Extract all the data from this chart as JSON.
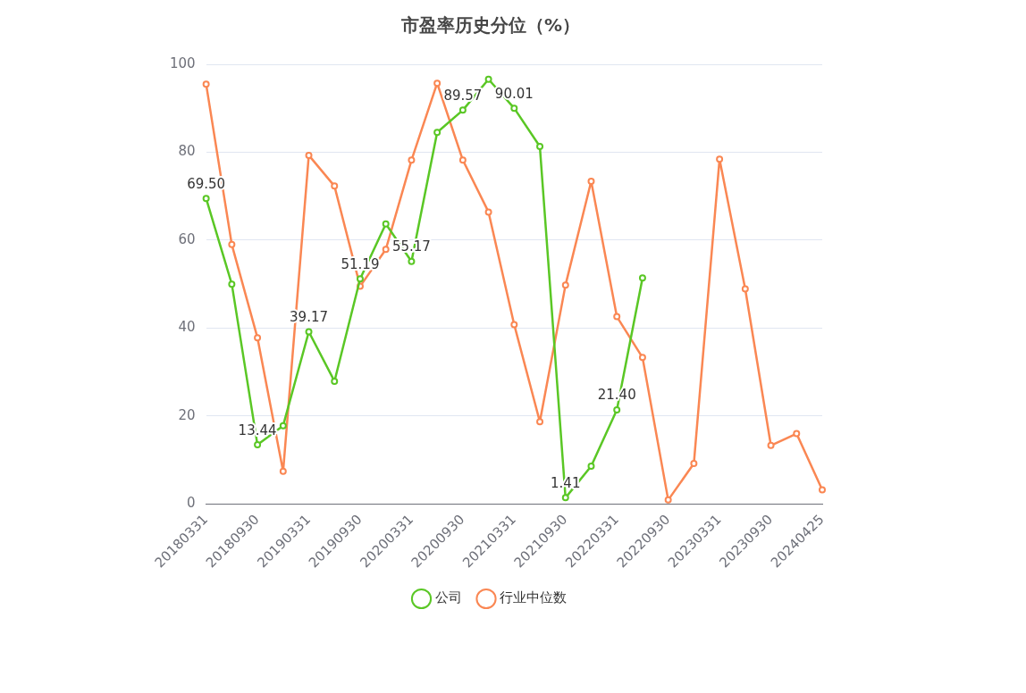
{
  "chart_data": {
    "type": "line",
    "title": "市盈率历史分位（%）",
    "categories": [
      "20180331",
      null,
      "20180930",
      null,
      "20190331",
      null,
      "20190930",
      null,
      "20200331",
      null,
      "20200930",
      null,
      "20210331",
      null,
      "20210930",
      null,
      "20220331",
      null,
      "20220930",
      null,
      "20230331",
      null,
      "20230930",
      null,
      "20240425"
    ],
    "series": [
      {
        "name": "公司",
        "color": "#5ac725",
        "values": [
          69.5,
          50.0,
          13.44,
          17.8,
          39.17,
          27.9,
          51.19,
          63.7,
          55.17,
          84.5,
          89.57,
          96.6,
          90.01,
          81.3,
          1.41,
          8.6,
          21.4,
          51.4,
          null,
          null,
          null,
          null,
          null,
          null,
          null
        ],
        "value_labels": [
          "69.50",
          null,
          "13.44",
          null,
          "39.17",
          null,
          "51.19",
          null,
          "55.17",
          null,
          "89.57",
          null,
          "90.01",
          null,
          "1.41",
          null,
          "21.40",
          null,
          null,
          null,
          null,
          null,
          null,
          null,
          null
        ]
      },
      {
        "name": "行业中位数",
        "color": "#fa8753",
        "values": [
          95.5,
          59.0,
          37.8,
          7.4,
          79.3,
          72.3,
          49.5,
          57.9,
          78.2,
          95.7,
          78.2,
          66.4,
          40.8,
          18.7,
          49.8,
          73.4,
          42.6,
          33.3,
          0.9,
          9.2,
          78.4,
          48.9,
          13.3,
          16.0,
          3.2
        ]
      }
    ],
    "ylim": [
      0,
      100
    ],
    "yticks": [
      0,
      20,
      40,
      60,
      80,
      100
    ],
    "grid": "y",
    "legend": "bottom",
    "marker": "circle",
    "line_style": "solid"
  }
}
